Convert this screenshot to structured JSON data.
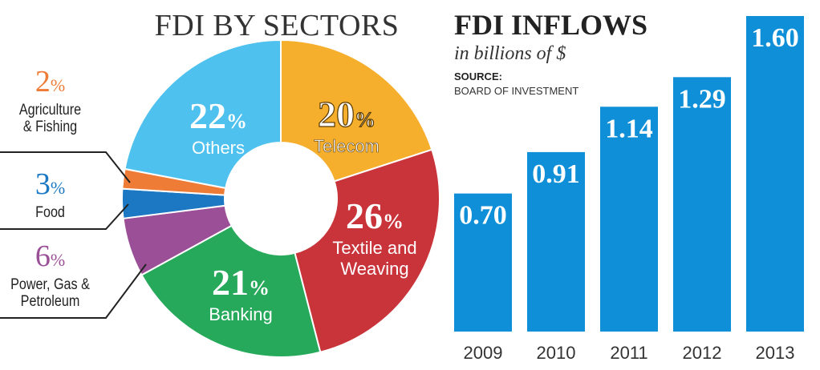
{
  "pie": {
    "title": "FDI BY SECTORS",
    "pct_suffix": "%"
  },
  "bars": {
    "title": "FDI INFLOWS",
    "subtitle": "in billions of $",
    "source_label": "SOURCE:",
    "source_value": "BOARD OF INVESTMENT"
  },
  "colors": {
    "others": "#4ec1ee",
    "telecom": "#f6ae2d",
    "textile": "#c9343b",
    "banking": "#26a95b",
    "power": "#9b4f96",
    "food": "#1c78c2",
    "agriculture": "#ee7c36",
    "bar": "#0f8fd8"
  },
  "chart_data": [
    {
      "type": "pie",
      "title": "FDI BY SECTORS",
      "slices": [
        {
          "key": "telecom",
          "label": "Telecom",
          "value": 20,
          "value_text": "20"
        },
        {
          "key": "textile",
          "label": "Textile and Weaving",
          "value": 26,
          "value_text": "26"
        },
        {
          "key": "banking",
          "label": "Banking",
          "value": 21,
          "value_text": "21"
        },
        {
          "key": "power",
          "label": "Power, Gas & Petroleum",
          "value": 6,
          "value_text": "6"
        },
        {
          "key": "food",
          "label": "Food",
          "value": 3,
          "value_text": "3"
        },
        {
          "key": "agriculture",
          "label": "Agriculture & Fishing",
          "value": 2,
          "value_text": "2"
        },
        {
          "key": "others",
          "label": "Others",
          "value": 22,
          "value_text": "22"
        }
      ],
      "inner_labels": {
        "telecom": [
          "Telecom"
        ],
        "textile": [
          "Textile and",
          "Weaving"
        ],
        "banking": [
          "Banking"
        ],
        "others": [
          "Others"
        ]
      },
      "callouts": {
        "agriculture": [
          "Agriculture",
          "& Fishing"
        ],
        "food": [
          "Food"
        ],
        "power": [
          "Power, Gas &",
          "Petroleum"
        ]
      }
    },
    {
      "type": "bar",
      "title": "FDI INFLOWS",
      "ylabel": "in billions of $",
      "categories": [
        "2009",
        "2010",
        "2011",
        "2012",
        "2013"
      ],
      "values": [
        0.7,
        0.91,
        1.14,
        1.29,
        1.6
      ],
      "value_labels": [
        "0.70",
        "0.91",
        "1.14",
        "1.29",
        "1.60"
      ],
      "ylim": [
        0,
        1.6
      ]
    }
  ]
}
